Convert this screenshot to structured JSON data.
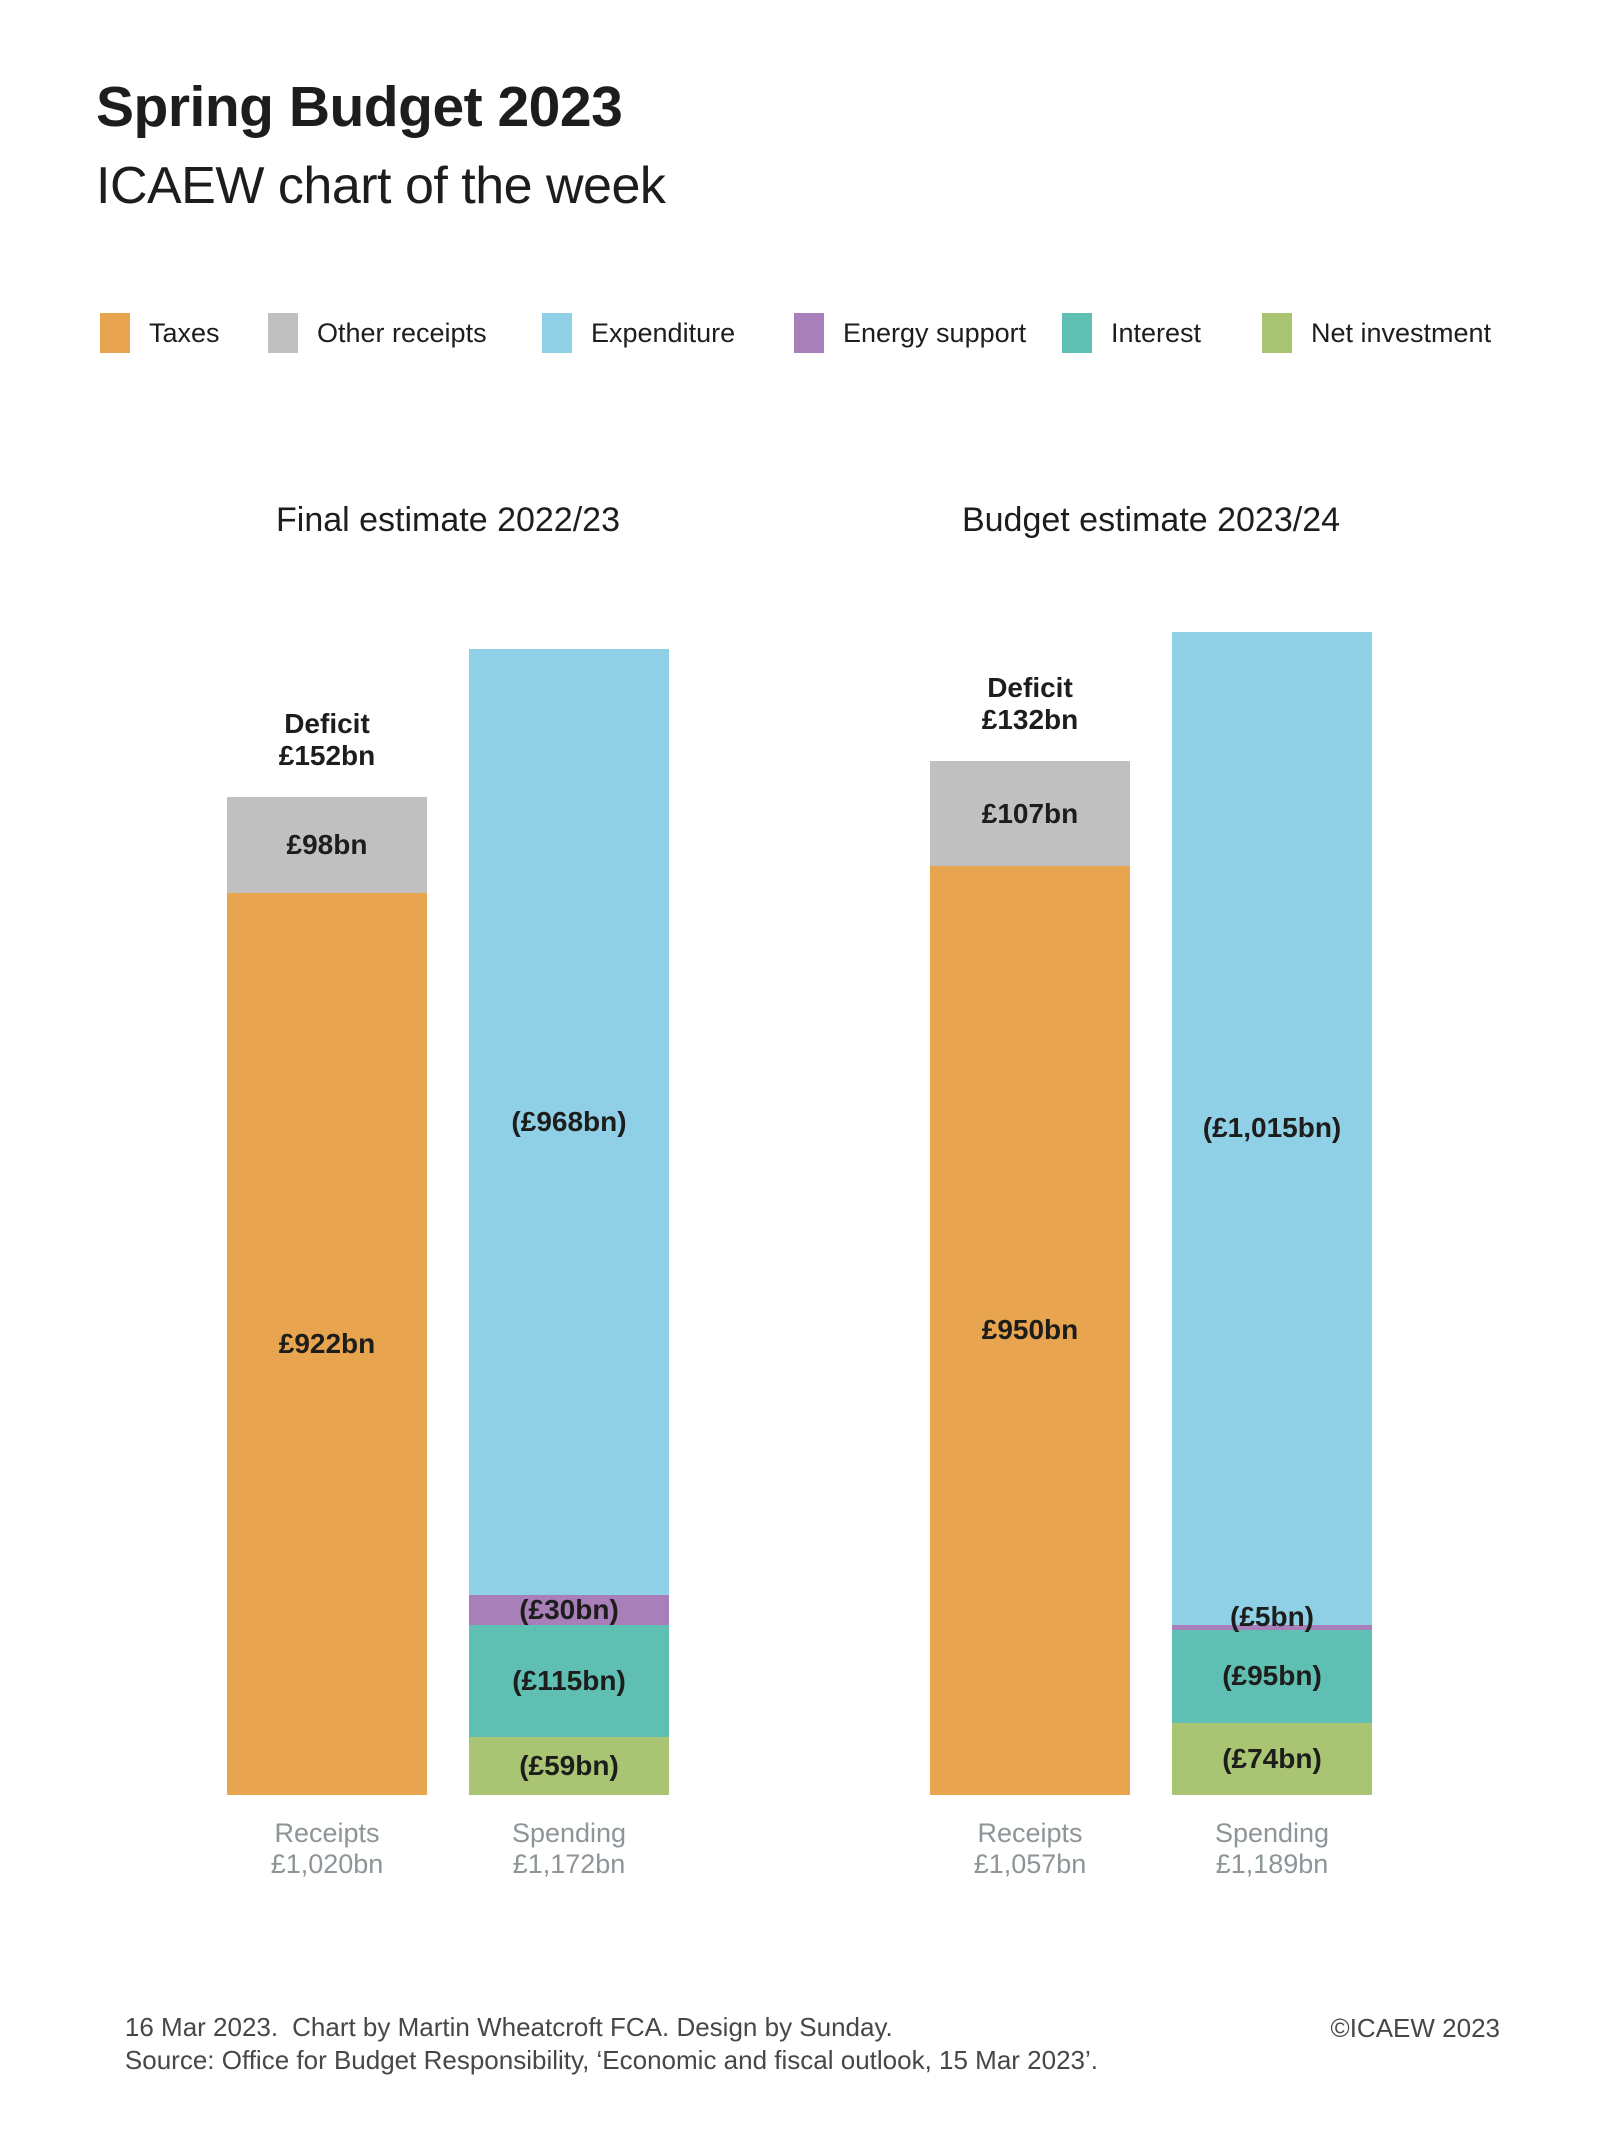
{
  "header": {
    "title": "Spring Budget 2023",
    "subtitle": "ICAEW chart of the week"
  },
  "colors": {
    "taxes": "#E8A44F",
    "other_receipts": "#C1C0C0",
    "expenditure": "#8FD0E6",
    "energy_support": "#A97FB9",
    "interest": "#5FBFB2",
    "net_investment": "#A9C573",
    "text_dark": "#1D1D1B",
    "axis_gray": "#8D9598",
    "footer_gray": "#474747"
  },
  "chart_data": {
    "type": "bar",
    "stacked": true,
    "unit": "£bn",
    "legend": [
      {
        "key": "taxes",
        "label": "Taxes"
      },
      {
        "key": "other_receipts",
        "label": "Other receipts"
      },
      {
        "key": "expenditure",
        "label": "Expenditure"
      },
      {
        "key": "energy_support",
        "label": "Energy support"
      },
      {
        "key": "interest",
        "label": "Interest"
      },
      {
        "key": "net_investment",
        "label": "Net investment"
      }
    ],
    "groups": [
      {
        "title": "Final estimate 2022/23",
        "deficit": {
          "label": "Deficit",
          "value": 152,
          "value_label": "£152bn"
        },
        "bars": [
          {
            "name": "Receipts",
            "total": 1020,
            "total_label": "£1,020bn",
            "segments": [
              {
                "key": "taxes",
                "value": 922,
                "label": "£922bn"
              },
              {
                "key": "other_receipts",
                "value": 98,
                "label": "£98bn"
              }
            ]
          },
          {
            "name": "Spending",
            "total": 1172,
            "total_label": "£1,172bn",
            "segments": [
              {
                "key": "net_investment",
                "value": 59,
                "label": "(£59bn)"
              },
              {
                "key": "interest",
                "value": 115,
                "label": "(£115bn)"
              },
              {
                "key": "energy_support",
                "value": 30,
                "label": "(£30bn)"
              },
              {
                "key": "expenditure",
                "value": 968,
                "label": "(£968bn)"
              }
            ]
          }
        ]
      },
      {
        "title": "Budget estimate 2023/24",
        "deficit": {
          "label": "Deficit",
          "value": 132,
          "value_label": "£132bn"
        },
        "bars": [
          {
            "name": "Receipts",
            "total": 1057,
            "total_label": "£1,057bn",
            "segments": [
              {
                "key": "taxes",
                "value": 950,
                "label": "£950bn"
              },
              {
                "key": "other_receipts",
                "value": 107,
                "label": "£107bn"
              }
            ]
          },
          {
            "name": "Spending",
            "total": 1189,
            "total_label": "£1,189bn",
            "segments": [
              {
                "key": "net_investment",
                "value": 74,
                "label": "(£74bn)"
              },
              {
                "key": "interest",
                "value": 95,
                "label": "(£95bn)"
              },
              {
                "key": "energy_support",
                "value": 5,
                "label": "(£5bn)"
              },
              {
                "key": "expenditure",
                "value": 1015,
                "label": "(£1,015bn)"
              }
            ]
          }
        ]
      }
    ]
  },
  "footer": {
    "date": "16 Mar 2023.",
    "credit": "Chart by Martin Wheatcroft FCA. Design by Sunday.",
    "source": "Source: Office for Budget Responsibility, ‘Economic and fiscal outlook, 15 Mar 2023’.",
    "copyright": "©ICAEW 2023"
  }
}
